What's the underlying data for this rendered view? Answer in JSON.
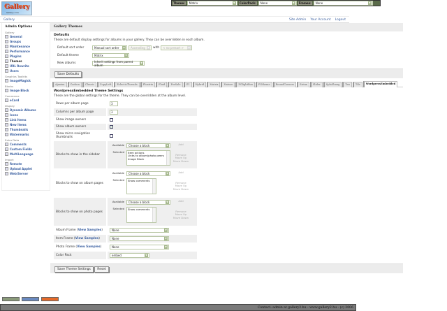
{
  "header": {
    "logo_text": "Gallery",
    "logo_sub": "Gallery 2 hu",
    "theme_label": "Theme:",
    "theme_value": "Matrix",
    "colorpack_label": "ColorPack:",
    "colorpack_value": "None",
    "frames_label": "Frames:",
    "frames_value": "None"
  },
  "breadcrumb": {
    "root": "Gallery",
    "links": [
      "Site Admin",
      "Your Account",
      "Logout"
    ]
  },
  "sidebar": {
    "title": "Admin Options",
    "groups": [
      {
        "name": "Gallery",
        "items": [
          "General",
          "Groups",
          "Maintenance",
          "Performance",
          "Plugins",
          "Themes",
          "URL Rewrite",
          "Users"
        ]
      },
      {
        "name": "Graphics Toolkits",
        "items": [
          "ImageMagick"
        ]
      },
      {
        "name": "Blocks",
        "items": [
          "Image Block"
        ]
      },
      {
        "name": "Commerce",
        "items": [
          "eCard"
        ]
      },
      {
        "name": "Display",
        "items": [
          "Dynamic Albums",
          "Icons",
          "Link Items",
          "New Items",
          "Thumbnails",
          "Watermarks"
        ]
      },
      {
        "name": "Extra Data",
        "items": [
          "Comments",
          "Custom Fields",
          "MultiLanguage"
        ]
      },
      {
        "name": "Import",
        "items": [
          "Remote",
          "Upload Applet",
          "Web/Server"
        ]
      }
    ],
    "active": "Themes"
  },
  "main": {
    "title": "Gallery Themes",
    "defaults_title": "Defaults",
    "defaults_desc": "These are default display settings for albums in your gallery. They can be overridden in each album.",
    "sort_label": "Default sort order",
    "sort_value": "Manual sort order",
    "sort_dir": "Ascending",
    "with_label": "with",
    "presort": "< no presort >",
    "theme_label": "Default theme",
    "theme_value": "Matrix",
    "new_albums_label": "New albums",
    "new_albums_value": "Inherit settings from parent album",
    "save_defaults": "Save Defaults",
    "tabs": [
      "Ajaxian",
      "Carbon",
      "Classic",
      "CopyLeft",
      "EclecticThreads",
      "Floatrix",
      "Fluid",
      "ForSale",
      "G1",
      "Hybrid",
      "Matrix",
      "Nature",
      "PGlightBox",
      "PGtheme",
      "RoundCorners",
      "Siriux",
      "Slider",
      "SplaShang",
      "Tan",
      "Tile",
      "WordpressEmbedded"
    ],
    "active_tab": "WordpressEmbedded",
    "theme_settings_title": "WordpressEmbedded Theme Settings",
    "theme_settings_desc": "These are the global settings for the theme. They can be overridden at the album level.",
    "rows_label": "Rows per album page",
    "rows_value": "3",
    "cols_label": "Columns per album page",
    "cols_value": "3",
    "image_owners_label": "Show image owners",
    "image_owners": false,
    "album_owners_label": "Show album owners",
    "album_owners": true,
    "micro_label": "Show micro navigation thumbnails",
    "micro": false,
    "available_label": "Available",
    "selected_label": "Selected",
    "choose": "Choose a block",
    "add": "Add",
    "remove": "Remove",
    "move_up": "Move Up",
    "move_down": "Move Down",
    "sidebar_blocks_label": "Blocks to show in the sidebar",
    "sidebar_blocks": [
      "Item actions",
      "Links to album/photo peers",
      "Image Block"
    ],
    "album_blocks_label": "Blocks to show on album pages",
    "album_blocks": [
      "Show comments"
    ],
    "photo_blocks_label": "Blocks to show on photo pages",
    "photo_blocks": [
      "Show comments"
    ],
    "view_samples": "View Samples",
    "album_frame_label": "Album Frame",
    "album_frame": "None",
    "item_frame_label": "Item Frame",
    "item_frame": "None",
    "photo_frame_label": "Photo Frame",
    "photo_frame": "None",
    "colorpack_label": "Color Pack",
    "colorpack": "embed",
    "save_theme": "Save Theme Settings",
    "reset": "Reset"
  },
  "footer": {
    "text": "Contact: admin at gallery2.hu - www.gallery2.hu - (c) 2006"
  },
  "colors": {
    "link": "#3a5fa0",
    "panel": "#ececec",
    "footer": "#7a7a7a",
    "themebar": "#5a6b4a"
  }
}
